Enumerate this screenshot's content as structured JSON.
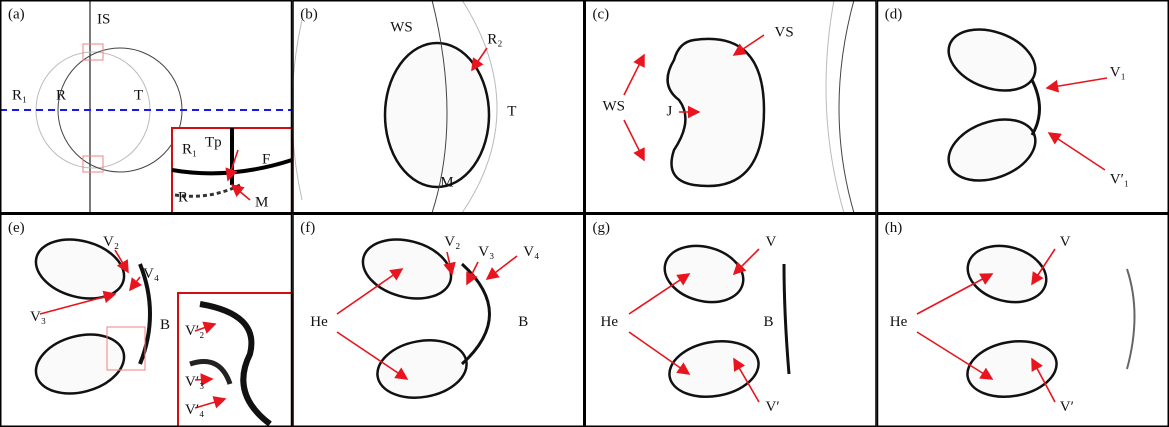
{
  "panels": [
    {
      "label": "(a)",
      "annotations": [
        "IS",
        "R₁",
        "R",
        "T",
        "Tp",
        "R₁",
        "F",
        "M",
        "R"
      ]
    },
    {
      "label": "(b)",
      "annotations": [
        "WS",
        "R₂",
        "T",
        "M"
      ]
    },
    {
      "label": "(c)",
      "annotations": [
        "VS",
        "WS",
        "J"
      ]
    },
    {
      "label": "(d)",
      "annotations": [
        "V₁",
        "V′₁"
      ]
    },
    {
      "label": "(e)",
      "annotations": [
        "V₂",
        "V₄",
        "V₃",
        "B",
        "V′₂",
        "V′₃",
        "V′₄"
      ]
    },
    {
      "label": "(f)",
      "annotations": [
        "V₂",
        "V₃",
        "V₄",
        "He",
        "B"
      ]
    },
    {
      "label": "(g)",
      "annotations": [
        "V",
        "He",
        "B",
        "V′"
      ]
    },
    {
      "label": "(h)",
      "annotations": [
        "V",
        "He",
        "V′"
      ]
    }
  ]
}
